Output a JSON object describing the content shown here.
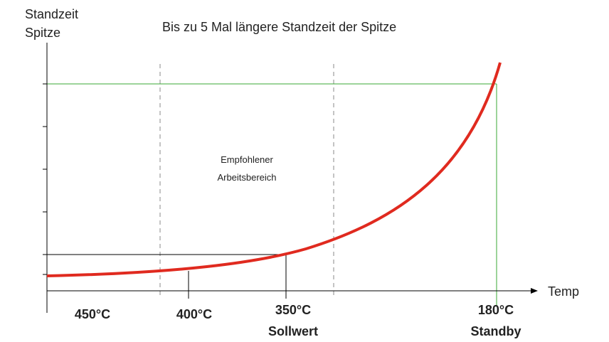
{
  "y_axis_label": [
    "Standzeit",
    "Spitze"
  ],
  "title": "Bis zu 5 Mal längere Standzeit der Spitze",
  "zone_label": [
    "Empfohlener",
    "Arbeitsbereich"
  ],
  "x_axis_label": "Temp",
  "temperatures": [
    {
      "label": "450°C"
    },
    {
      "label": "400°C"
    },
    {
      "label": "350°C",
      "note": "Sollwert"
    },
    {
      "label": "180°C",
      "note": "Standby"
    }
  ]
}
